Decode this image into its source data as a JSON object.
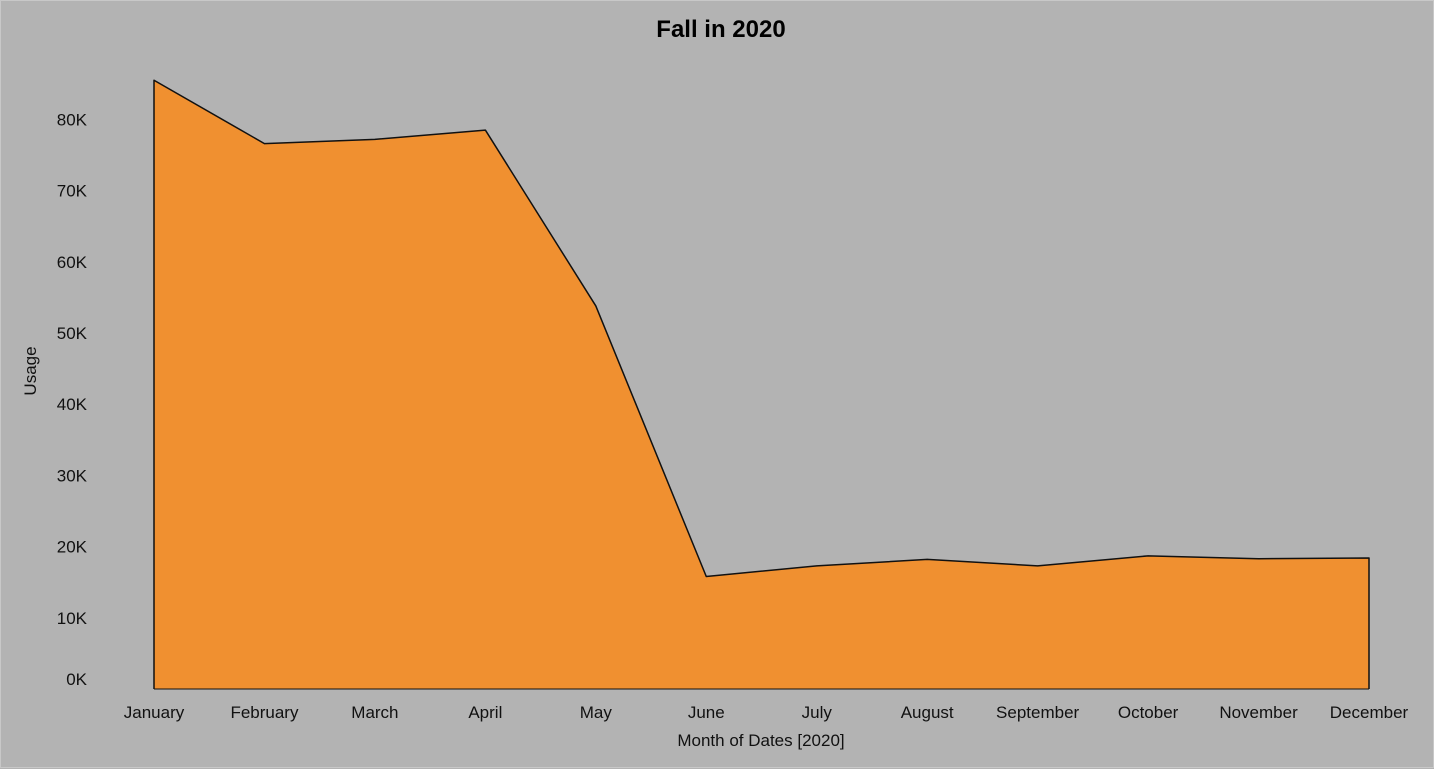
{
  "chart_data": {
    "type": "area",
    "title": "Fall in 2020",
    "xlabel": "Month of Dates [2020]",
    "ylabel": "Usage",
    "categories": [
      "January",
      "February",
      "March",
      "April",
      "May",
      "June",
      "July",
      "August",
      "September",
      "October",
      "November",
      "December"
    ],
    "values": [
      85500,
      76600,
      77200,
      78500,
      53800,
      15800,
      17300,
      18200,
      17300,
      18700,
      18300,
      18400
    ],
    "ylim": [
      0,
      88000
    ],
    "yticks": [
      0,
      10000,
      20000,
      30000,
      40000,
      50000,
      60000,
      70000,
      80000
    ],
    "ytick_labels": [
      "0K",
      "10K",
      "20K",
      "30K",
      "40K",
      "50K",
      "60K",
      "70K",
      "80K"
    ],
    "grid": false,
    "fill_color": "#f09030",
    "line_color": "#111111",
    "background_color": "#b3b3b3"
  }
}
